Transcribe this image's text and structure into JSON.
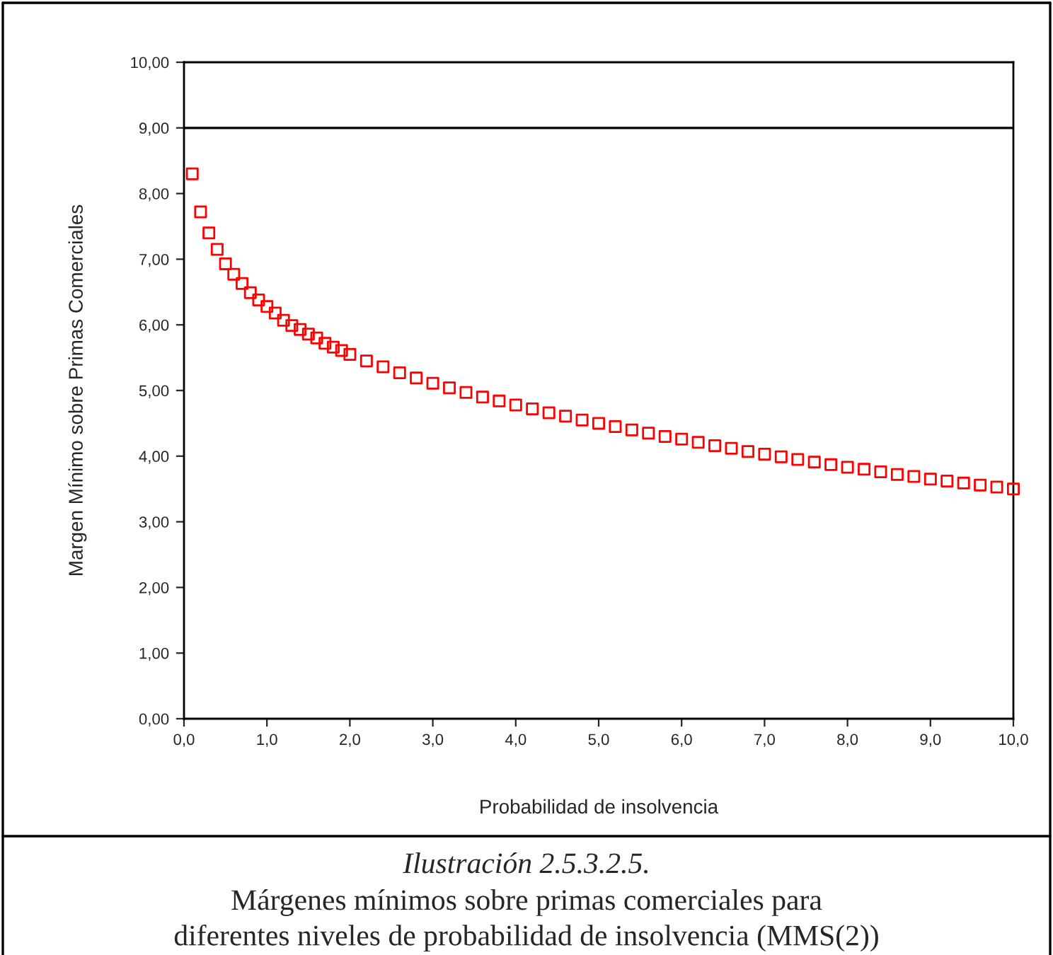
{
  "chart_data": {
    "type": "scatter",
    "xlabel": "Probabilidad de insolvencia",
    "ylabel": "Margen Mínimo sobre Primas Comerciales",
    "x": [
      0.1,
      0.2,
      0.3,
      0.4,
      0.5,
      0.6,
      0.7,
      0.8,
      0.9,
      1.0,
      1.1,
      1.2,
      1.3,
      1.4,
      1.5,
      1.6,
      1.7,
      1.8,
      1.9,
      2.0,
      2.2,
      2.4,
      2.6,
      2.8,
      3.0,
      3.2,
      3.4,
      3.6,
      3.8,
      4.0,
      4.2,
      4.4,
      4.6,
      4.8,
      5.0,
      5.2,
      5.4,
      5.6,
      5.8,
      6.0,
      6.2,
      6.4,
      6.6,
      6.8,
      7.0,
      7.2,
      7.4,
      7.6,
      7.8,
      8.0,
      8.2,
      8.4,
      8.6,
      8.8,
      9.0,
      9.2,
      9.4,
      9.6,
      9.8,
      10.0
    ],
    "series": [
      {
        "color": "#ff0000",
        "values": [
          8.3,
          7.72,
          7.4,
          7.15,
          6.93,
          6.77,
          6.63,
          6.49,
          6.38,
          6.28,
          6.18,
          6.07,
          5.99,
          5.93,
          5.86,
          5.8,
          5.72,
          5.66,
          5.61,
          5.55,
          5.45,
          5.36,
          5.27,
          5.19,
          5.11,
          5.04,
          4.97,
          4.9,
          4.84,
          4.78,
          4.72,
          4.66,
          4.61,
          4.55,
          4.5,
          4.45,
          4.4,
          4.35,
          4.3,
          4.26,
          4.21,
          4.16,
          4.12,
          4.07,
          4.03,
          3.99,
          3.95,
          3.91,
          3.87,
          3.83,
          3.8,
          3.76,
          3.72,
          3.69,
          3.65,
          3.62,
          3.59,
          3.56,
          3.53,
          3.5
        ]
      }
    ],
    "xlim": [
      0,
      10
    ],
    "ylim": [
      0,
      10
    ],
    "xticks": [
      {
        "value": 0,
        "label": "0,0"
      },
      {
        "value": 1,
        "label": "1,0"
      },
      {
        "value": 2,
        "label": "2,0"
      },
      {
        "value": 3,
        "label": "3,0"
      },
      {
        "value": 4,
        "label": "4,0"
      },
      {
        "value": 5,
        "label": "5,0"
      },
      {
        "value": 6,
        "label": "6,0"
      },
      {
        "value": 7,
        "label": "7,0"
      },
      {
        "value": 8,
        "label": "8,0"
      },
      {
        "value": 9,
        "label": "9,0"
      },
      {
        "value": 10,
        "label": "10,0"
      }
    ],
    "yticks": [
      {
        "value": 0,
        "label": "0,00"
      },
      {
        "value": 1,
        "label": "1,00"
      },
      {
        "value": 2,
        "label": "2,00"
      },
      {
        "value": 3,
        "label": "3,00"
      },
      {
        "value": 4,
        "label": "4,00"
      },
      {
        "value": 5,
        "label": "5,00"
      },
      {
        "value": 6,
        "label": "6,00"
      },
      {
        "value": 7,
        "label": "7,00"
      },
      {
        "value": 8,
        "label": "8,00"
      },
      {
        "value": 9,
        "label": "9,00"
      },
      {
        "value": 10,
        "label": "10,00"
      }
    ],
    "ref_lines": [
      {
        "axis": "y",
        "value": 9,
        "color": "#000000"
      }
    ],
    "marker": "square",
    "grid": false,
    "annotations": [
      "Ilustración 2.5.3.2.5.",
      "Márgenes mínimos sobre primas comerciales para",
      "diferentes niveles de probabilidad de insolvencia (MMS(2))"
    ]
  }
}
